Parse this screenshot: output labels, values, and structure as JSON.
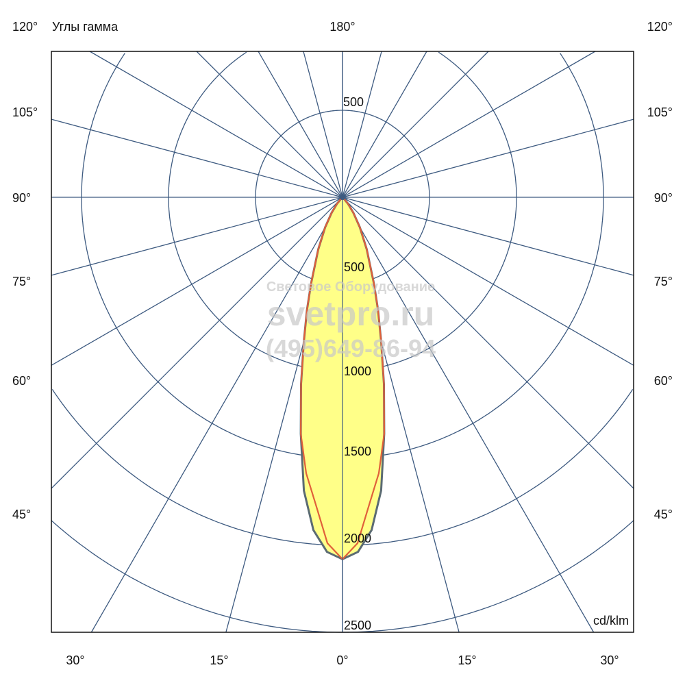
{
  "chart_data": {
    "type": "polar",
    "title": "Углы гамма",
    "unit_label": "cd/klm",
    "radial_ticks": [
      500,
      1000,
      1500,
      2000,
      2500
    ],
    "radial_tick_labels": [
      "500",
      "1000",
      "1500",
      "2000",
      "2500"
    ],
    "upper_tick_label": "500",
    "angle_step_deg": 15,
    "side_angle_labels": [
      "120°",
      "105°",
      "90°",
      "75°",
      "60°",
      "45°"
    ],
    "top_angle_label": "180°",
    "bottom_angle_labels": [
      "30°",
      "15°",
      "0°",
      "15°",
      "30°"
    ],
    "grid": true,
    "series": [
      {
        "color": "#5b6b73",
        "fill": "#ffff88",
        "angles": [
          0,
          2.5,
          5,
          7.5,
          10,
          12.5,
          15,
          17.5,
          20,
          25,
          30,
          35,
          40,
          45,
          50
        ],
        "values": [
          2080,
          2040,
          1920,
          1700,
          1380,
          1100,
          860,
          680,
          530,
          330,
          200,
          110,
          50,
          10,
          0
        ]
      },
      {
        "color": "#e0603a",
        "angles": [
          0,
          2.5,
          5,
          7.5,
          10,
          12.5,
          15,
          17.5,
          20,
          25,
          30,
          35,
          40,
          45,
          50
        ],
        "values": [
          2080,
          1990,
          1770,
          1600,
          1380,
          1100,
          860,
          680,
          530,
          330,
          200,
          110,
          50,
          10,
          0
        ]
      }
    ]
  },
  "watermark": {
    "line1": "Световое Оборудование",
    "line2": "svetpro.ru",
    "line3": "(495)649-86-94"
  },
  "colors": {
    "grid": "#3d5a80",
    "frame": "#111111"
  }
}
